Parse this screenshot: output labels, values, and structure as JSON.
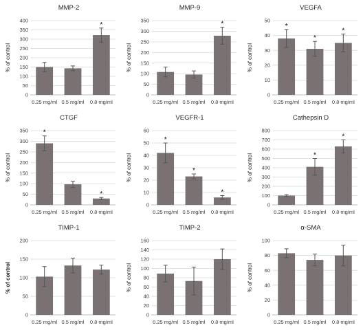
{
  "chart_data": [
    {
      "type": "bar",
      "title": "MMP-2",
      "ylabel": "% of control",
      "ylim": [
        0,
        400
      ],
      "yticks": [
        0,
        50,
        100,
        150,
        200,
        250,
        300,
        350,
        400
      ],
      "categories": [
        "0.25 mg/ml",
        "0.5 mg/ml",
        "0.8 mg/ml"
      ],
      "values": [
        150,
        143,
        322
      ],
      "errors": [
        25,
        13,
        38
      ],
      "significant": [
        "",
        "",
        "*"
      ]
    },
    {
      "type": "bar",
      "title": "MMP-9",
      "ylabel": "% of control",
      "ylim": [
        0,
        350
      ],
      "yticks": [
        0,
        50,
        100,
        150,
        200,
        250,
        300,
        350
      ],
      "categories": [
        "0.25 mg/ml",
        "0.5 mg/ml",
        "0.8 mg/ml"
      ],
      "values": [
        108,
        96,
        279
      ],
      "errors": [
        23,
        17,
        40
      ],
      "significant": [
        "",
        "",
        "*"
      ]
    },
    {
      "type": "bar",
      "title": "VEGFA",
      "ylabel": "% of control",
      "ylim": [
        0,
        50
      ],
      "yticks": [
        0,
        10,
        20,
        30,
        40,
        50
      ],
      "categories": [
        "0.25 mg/ml",
        "0.5 mg/ml",
        "0.8 mg/ml"
      ],
      "values": [
        38,
        31,
        35
      ],
      "errors": [
        6,
        5,
        6
      ],
      "significant": [
        "*",
        "*",
        "*"
      ]
    },
    {
      "type": "bar",
      "title": "CTGF",
      "ylabel": "% of control",
      "ylim": [
        0,
        350
      ],
      "yticks": [
        0,
        50,
        100,
        150,
        200,
        250,
        300,
        350
      ],
      "categories": [
        "0.25 mg/ml",
        "0.5 mg/ml",
        "0.8 mg/ml"
      ],
      "values": [
        290,
        97,
        30
      ],
      "errors": [
        35,
        15,
        5
      ],
      "significant": [
        "*",
        "",
        "*"
      ]
    },
    {
      "type": "bar",
      "title": "VEGFR-1",
      "ylabel": "% of control",
      "ylim": [
        0,
        60
      ],
      "yticks": [
        0,
        10,
        20,
        30,
        40,
        50,
        60
      ],
      "categories": [
        "0.25 mg/ml",
        "0.5 mg/ml",
        "0.8 mg/ml"
      ],
      "values": [
        42,
        23,
        6
      ],
      "errors": [
        8,
        2,
        1.5
      ],
      "significant": [
        "*",
        "*",
        "*"
      ]
    },
    {
      "type": "bar",
      "title": "Cathepsin D",
      "ylabel": "% of control",
      "ylim": [
        0,
        800
      ],
      "yticks": [
        0,
        100,
        200,
        300,
        400,
        500,
        600,
        700,
        800
      ],
      "categories": [
        "0.25 mg/ml",
        "0.5 mg/ml",
        "0.8 mg/ml"
      ],
      "values": [
        100,
        410,
        630
      ],
      "errors": [
        10,
        90,
        70
      ],
      "significant": [
        "",
        "*",
        "*"
      ]
    },
    {
      "type": "bar",
      "title": "TIMP-1",
      "ylabel": "% of control",
      "ylabel_bold": true,
      "ylim": [
        0,
        200
      ],
      "yticks": [
        0,
        50,
        100,
        150,
        200
      ],
      "categories": [
        "0.25 mg/ml",
        "0.5 mg/ml",
        "0.8 mg/ml"
      ],
      "values": [
        103,
        133,
        122
      ],
      "errors": [
        27,
        20,
        12
      ],
      "significant": [
        "",
        "",
        ""
      ]
    },
    {
      "type": "bar",
      "title": "TIMP-2",
      "ylabel": "% of control",
      "ylim": [
        0,
        160
      ],
      "yticks": [
        0,
        20,
        40,
        60,
        80,
        100,
        120,
        140,
        160
      ],
      "categories": [
        "0.25 mg/ml",
        "0.5 mg/ml",
        "0.8 mg/ml"
      ],
      "values": [
        89,
        73,
        120
      ],
      "errors": [
        18,
        30,
        22
      ],
      "significant": [
        "",
        "",
        ""
      ]
    },
    {
      "type": "bar",
      "title": "α-SMA",
      "ylabel": "% of control",
      "ylim": [
        0,
        100
      ],
      "yticks": [
        0,
        20,
        40,
        60,
        80,
        100
      ],
      "categories": [
        "0.25 mg/ml",
        "0.5 mg/ml",
        "0.8 mg/ml"
      ],
      "values": [
        83,
        74,
        80
      ],
      "errors": [
        6,
        8,
        14
      ],
      "significant": [
        "",
        "",
        ""
      ]
    }
  ],
  "colors": {
    "bar": "#7a7272",
    "grid": "#d9d9d9",
    "axis": "#bfbfbf",
    "errorbar": "#555555"
  }
}
